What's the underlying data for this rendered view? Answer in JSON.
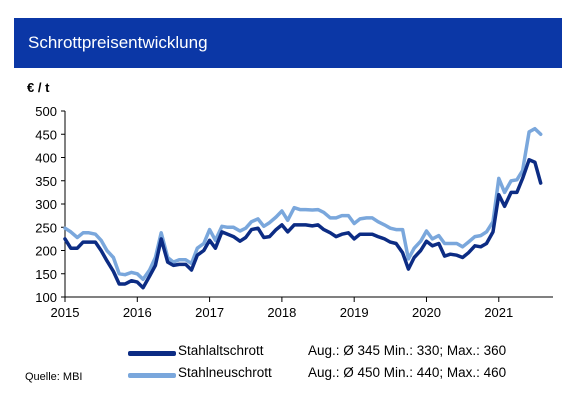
{
  "header": {
    "title": "Schrottpreisentwicklung"
  },
  "source": "Quelle: MBI",
  "colors": {
    "header_bg": "#0b37a6",
    "alt": "#0c2c84",
    "neu": "#7aa7dc",
    "axis": "#000000",
    "grid": "#d9d9d9"
  },
  "legend": [
    {
      "label": "Stahlaltschrott",
      "stats": "Aug.: Ø 345  Min.: 330; Max.: 360",
      "color": "#0c2c84"
    },
    {
      "label": "Stahlneuschrott",
      "stats": "Aug.: Ø 450  Min.: 440; Max.: 460",
      "color": "#7aa7dc"
    }
  ],
  "chart_data": {
    "type": "line",
    "ylabel": "€ / t",
    "xlabel": "",
    "ylim": [
      100,
      500
    ],
    "yticks": [
      100,
      150,
      200,
      250,
      300,
      350,
      400,
      450,
      500
    ],
    "xlim": [
      2015,
      2021.75
    ],
    "xticks": [
      2015,
      2016,
      2017,
      2018,
      2019,
      2020,
      2021
    ],
    "grid": false,
    "series": [
      {
        "name": "Stahlaltschrott",
        "color": "#0c2c84",
        "points": [
          [
            2015.0,
            225
          ],
          [
            2015.08,
            205
          ],
          [
            2015.17,
            205
          ],
          [
            2015.25,
            218
          ],
          [
            2015.33,
            218
          ],
          [
            2015.42,
            218
          ],
          [
            2015.5,
            200
          ],
          [
            2015.58,
            178
          ],
          [
            2015.67,
            155
          ],
          [
            2015.75,
            128
          ],
          [
            2015.83,
            128
          ],
          [
            2015.92,
            135
          ],
          [
            2016.0,
            132
          ],
          [
            2016.08,
            120
          ],
          [
            2016.17,
            145
          ],
          [
            2016.25,
            168
          ],
          [
            2016.33,
            225
          ],
          [
            2016.42,
            175
          ],
          [
            2016.5,
            168
          ],
          [
            2016.58,
            170
          ],
          [
            2016.67,
            170
          ],
          [
            2016.75,
            158
          ],
          [
            2016.83,
            190
          ],
          [
            2016.92,
            200
          ],
          [
            2017.0,
            222
          ],
          [
            2017.08,
            205
          ],
          [
            2017.17,
            240
          ],
          [
            2017.25,
            235
          ],
          [
            2017.33,
            230
          ],
          [
            2017.42,
            220
          ],
          [
            2017.5,
            228
          ],
          [
            2017.58,
            245
          ],
          [
            2017.67,
            248
          ],
          [
            2017.75,
            228
          ],
          [
            2017.83,
            230
          ],
          [
            2017.92,
            245
          ],
          [
            2018.0,
            255
          ],
          [
            2018.08,
            240
          ],
          [
            2018.17,
            255
          ],
          [
            2018.25,
            255
          ],
          [
            2018.33,
            255
          ],
          [
            2018.42,
            253
          ],
          [
            2018.5,
            255
          ],
          [
            2018.58,
            245
          ],
          [
            2018.67,
            238
          ],
          [
            2018.75,
            230
          ],
          [
            2018.83,
            235
          ],
          [
            2018.92,
            238
          ],
          [
            2019.0,
            225
          ],
          [
            2019.08,
            235
          ],
          [
            2019.17,
            235
          ],
          [
            2019.25,
            235
          ],
          [
            2019.33,
            230
          ],
          [
            2019.42,
            225
          ],
          [
            2019.5,
            218
          ],
          [
            2019.58,
            215
          ],
          [
            2019.67,
            195
          ],
          [
            2019.75,
            160
          ],
          [
            2019.83,
            185
          ],
          [
            2019.92,
            200
          ],
          [
            2020.0,
            220
          ],
          [
            2020.08,
            210
          ],
          [
            2020.17,
            215
          ],
          [
            2020.25,
            188
          ],
          [
            2020.33,
            192
          ],
          [
            2020.42,
            190
          ],
          [
            2020.5,
            185
          ],
          [
            2020.58,
            195
          ],
          [
            2020.67,
            210
          ],
          [
            2020.75,
            208
          ],
          [
            2020.83,
            215
          ],
          [
            2020.92,
            240
          ],
          [
            2021.0,
            320
          ],
          [
            2021.08,
            295
          ],
          [
            2021.17,
            325
          ],
          [
            2021.25,
            325
          ],
          [
            2021.33,
            355
          ],
          [
            2021.42,
            395
          ],
          [
            2021.5,
            390
          ],
          [
            2021.58,
            345
          ]
        ]
      },
      {
        "name": "Stahlneuschrott",
        "color": "#7aa7dc",
        "points": [
          [
            2015.0,
            248
          ],
          [
            2015.08,
            240
          ],
          [
            2015.17,
            228
          ],
          [
            2015.25,
            238
          ],
          [
            2015.33,
            238
          ],
          [
            2015.42,
            235
          ],
          [
            2015.5,
            222
          ],
          [
            2015.58,
            200
          ],
          [
            2015.67,
            185
          ],
          [
            2015.75,
            150
          ],
          [
            2015.83,
            148
          ],
          [
            2015.92,
            153
          ],
          [
            2016.0,
            150
          ],
          [
            2016.08,
            138
          ],
          [
            2016.17,
            158
          ],
          [
            2016.25,
            185
          ],
          [
            2016.33,
            238
          ],
          [
            2016.42,
            185
          ],
          [
            2016.5,
            175
          ],
          [
            2016.58,
            180
          ],
          [
            2016.67,
            180
          ],
          [
            2016.75,
            172
          ],
          [
            2016.83,
            205
          ],
          [
            2016.92,
            215
          ],
          [
            2017.0,
            245
          ],
          [
            2017.08,
            222
          ],
          [
            2017.17,
            252
          ],
          [
            2017.25,
            250
          ],
          [
            2017.33,
            250
          ],
          [
            2017.42,
            242
          ],
          [
            2017.5,
            248
          ],
          [
            2017.58,
            262
          ],
          [
            2017.67,
            268
          ],
          [
            2017.75,
            252
          ],
          [
            2017.83,
            260
          ],
          [
            2017.92,
            272
          ],
          [
            2018.0,
            285
          ],
          [
            2018.08,
            265
          ],
          [
            2018.17,
            292
          ],
          [
            2018.25,
            288
          ],
          [
            2018.33,
            288
          ],
          [
            2018.42,
            287
          ],
          [
            2018.5,
            288
          ],
          [
            2018.58,
            282
          ],
          [
            2018.67,
            270
          ],
          [
            2018.75,
            270
          ],
          [
            2018.83,
            275
          ],
          [
            2018.92,
            275
          ],
          [
            2019.0,
            258
          ],
          [
            2019.08,
            268
          ],
          [
            2019.17,
            270
          ],
          [
            2019.25,
            270
          ],
          [
            2019.33,
            262
          ],
          [
            2019.42,
            255
          ],
          [
            2019.5,
            248
          ],
          [
            2019.58,
            245
          ],
          [
            2019.67,
            245
          ],
          [
            2019.75,
            182
          ],
          [
            2019.83,
            205
          ],
          [
            2019.92,
            220
          ],
          [
            2020.0,
            242
          ],
          [
            2020.08,
            225
          ],
          [
            2020.17,
            232
          ],
          [
            2020.25,
            215
          ],
          [
            2020.33,
            215
          ],
          [
            2020.42,
            215
          ],
          [
            2020.5,
            208
          ],
          [
            2020.58,
            218
          ],
          [
            2020.67,
            230
          ],
          [
            2020.75,
            232
          ],
          [
            2020.83,
            240
          ],
          [
            2020.92,
            262
          ],
          [
            2021.0,
            355
          ],
          [
            2021.08,
            325
          ],
          [
            2021.17,
            350
          ],
          [
            2021.25,
            352
          ],
          [
            2021.33,
            372
          ],
          [
            2021.42,
            455
          ],
          [
            2021.5,
            462
          ],
          [
            2021.58,
            450
          ]
        ]
      }
    ]
  }
}
